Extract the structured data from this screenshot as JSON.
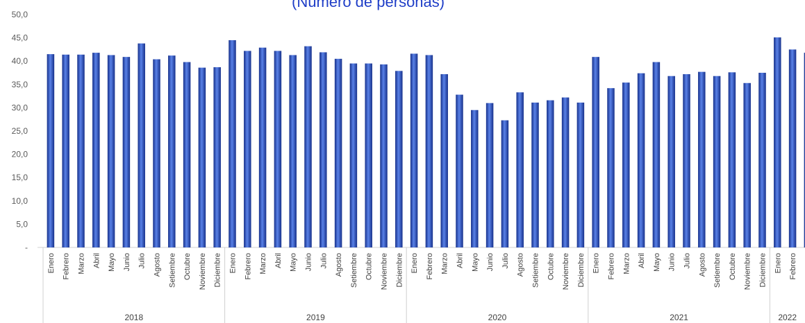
{
  "chart_data": {
    "type": "bar",
    "title": "",
    "subtitle": "(Número de personas)",
    "xlabel": "",
    "ylabel": "",
    "ylim": [
      0,
      50
    ],
    "yticks": [
      0,
      5,
      10,
      15,
      20,
      25,
      30,
      35,
      40,
      45,
      50
    ],
    "ytick_labels": [
      "-",
      "5,0",
      "10,0",
      "15,0",
      "20,0",
      "25,0",
      "30,0",
      "35,0",
      "40,0",
      "45,0",
      "50,0"
    ],
    "grid": false,
    "legend": "none",
    "bar_color": "#2e55c4",
    "bar_color_light": "#5a82e8",
    "bar_color_dark": "#16308a",
    "groups": [
      {
        "label": "2018",
        "categories": [
          "Enero",
          "Febrero",
          "Marzo",
          "Abril",
          "Mayo",
          "Junio",
          "Julio",
          "Agosto",
          "Setiembre",
          "Octubre",
          "Noviembre",
          "Diciembre"
        ],
        "values": [
          41.5,
          41.4,
          41.4,
          41.8,
          41.3,
          40.9,
          43.8,
          40.4,
          41.2,
          39.8,
          38.6,
          38.7
        ]
      },
      {
        "label": "2019",
        "categories": [
          "Enero",
          "Febrero",
          "Marzo",
          "Abril",
          "Mayo",
          "Junio",
          "Julio",
          "Agosto",
          "Setiembre",
          "Octubre",
          "Noviembre",
          "Diciembre"
        ],
        "values": [
          44.5,
          42.2,
          42.9,
          42.2,
          41.3,
          43.2,
          41.9,
          40.5,
          39.5,
          39.5,
          39.3,
          37.9
        ]
      },
      {
        "label": "2020",
        "categories": [
          "Enero",
          "Febrero",
          "Marzo",
          "Abril",
          "Mayo",
          "Junio",
          "Julio",
          "Agosto",
          "Setiembre",
          "Octubre",
          "Noviembre",
          "Diciembre"
        ],
        "values": [
          41.6,
          41.3,
          37.2,
          32.8,
          29.5,
          31.0,
          27.3,
          33.3,
          31.1,
          31.6,
          32.2,
          31.1
        ]
      },
      {
        "label": "2021",
        "categories": [
          "Enero",
          "Febrero",
          "Marzo",
          "Abril",
          "Mayo",
          "Junio",
          "Julio",
          "Agosto",
          "Setiembre",
          "Octubre",
          "Noviembre",
          "Diciembre"
        ],
        "values": [
          40.9,
          34.2,
          35.4,
          37.4,
          39.8,
          36.8,
          37.2,
          37.7,
          36.8,
          37.6,
          35.3,
          37.5
        ]
      },
      {
        "label": "2022",
        "categories": [
          "Enero",
          "Febrero",
          "Marzo"
        ],
        "values": [
          45.1,
          42.5,
          41.8
        ]
      }
    ]
  }
}
